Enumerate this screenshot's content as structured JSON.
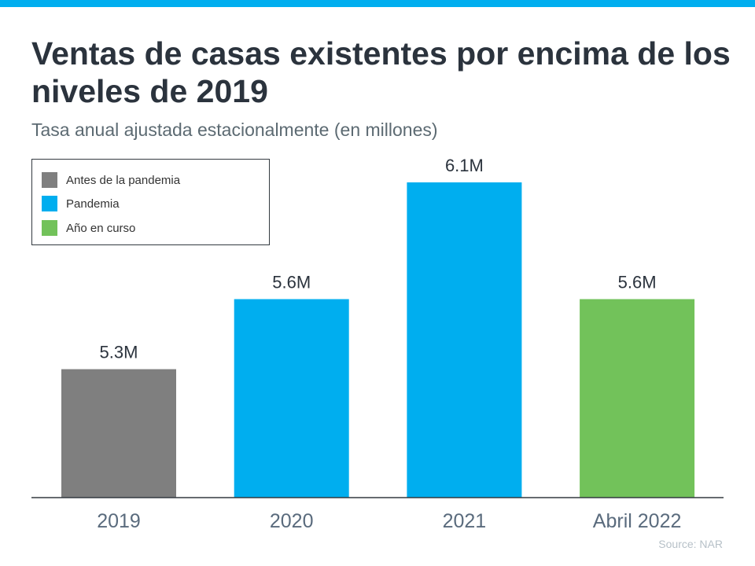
{
  "title": "Ventas de casas existentes por encima de los niveles de 2019",
  "subtitle": "Tasa anual ajustada estacionalmente (en millones)",
  "source": "Source: NAR",
  "colors": {
    "accent_bar": "#00aeef",
    "title": "#2b333d",
    "axis_text": "#5a6b7d"
  },
  "legend": [
    {
      "label": "Antes de la pandemia",
      "color": "#7f7f7f"
    },
    {
      "label": "Pandemia",
      "color": "#00aeef"
    },
    {
      "label": "Año en curso",
      "color": "#72c25a"
    }
  ],
  "chart_data": {
    "type": "bar",
    "title": "Ventas de casas existentes por encima de los niveles de 2019",
    "subtitle": "Tasa anual ajustada estacionalmente (en millones)",
    "categories": [
      "2019",
      "2020",
      "2021",
      "Abril 2022"
    ],
    "values": [
      5.3,
      5.6,
      6.1,
      5.6
    ],
    "data_labels": [
      "5.3M",
      "5.6M",
      "6.1M",
      "5.6M"
    ],
    "colors": [
      "#7f7f7f",
      "#00aeef",
      "#00aeef",
      "#72c25a"
    ],
    "ylim": [
      4.75,
      6.3
    ],
    "grid": false,
    "legend_position": "top-left"
  }
}
